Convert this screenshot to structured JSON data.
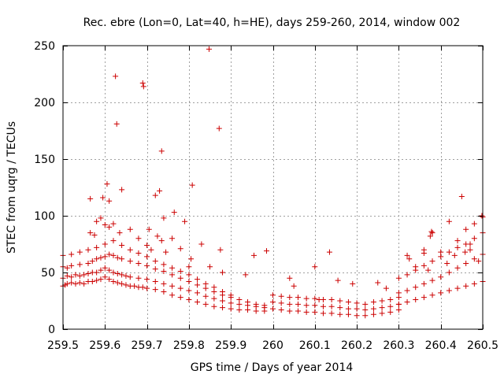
{
  "chart_data": {
    "type": "scatter",
    "title": "Rec. ebre (Lon=0, Lat=40, h=HE), days 259-260, 2014, window 002",
    "xlabel": "GPS time / Days of year 2014",
    "ylabel": "STEC from uqrg / TECUs",
    "xlim": [
      259.5,
      260.5
    ],
    "ylim": [
      0,
      250
    ],
    "xticks": [
      259.5,
      259.6,
      259.7,
      259.8,
      259.9,
      260,
      260.1,
      260.2,
      260.3,
      260.4,
      260.5
    ],
    "xtick_labels": [
      "259.5",
      "259.6",
      "259.7",
      "259.8",
      "259.9",
      "260",
      "260.1",
      "260.2",
      "260.3",
      "260.4",
      "260.5"
    ],
    "yticks": [
      0,
      50,
      100,
      150,
      200,
      250
    ],
    "ytick_labels": [
      "0",
      "50",
      "100",
      "150",
      "200",
      "250"
    ],
    "grid": true,
    "marker": "+",
    "color": "#cc0000",
    "series": [
      {
        "name": "STEC",
        "x": [
          259.5,
          259.505,
          259.51,
          259.52,
          259.53,
          259.54,
          259.55,
          259.56,
          259.57,
          259.58,
          259.59,
          259.6,
          259.61,
          259.62,
          259.63,
          259.64,
          259.65,
          259.66,
          259.67,
          259.68,
          259.69,
          259.7,
          259.72,
          259.74,
          259.76,
          259.78,
          259.8,
          259.82,
          259.84,
          259.86,
          259.88,
          259.9,
          259.92,
          259.94,
          259.96,
          259.98,
          259.5,
          259.51,
          259.52,
          259.53,
          259.54,
          259.55,
          259.56,
          259.57,
          259.58,
          259.59,
          259.6,
          259.61,
          259.62,
          259.63,
          259.64,
          259.65,
          259.66,
          259.68,
          259.7,
          259.72,
          259.74,
          259.76,
          259.78,
          259.8,
          259.82,
          259.84,
          259.86,
          259.88,
          259.9,
          259.92,
          259.94,
          259.96,
          259.98,
          259.5,
          259.51,
          259.52,
          259.54,
          259.56,
          259.57,
          259.58,
          259.59,
          259.6,
          259.61,
          259.62,
          259.63,
          259.64,
          259.66,
          259.68,
          259.7,
          259.72,
          259.74,
          259.76,
          259.78,
          259.8,
          259.82,
          259.84,
          259.86,
          259.88,
          259.9,
          259.92,
          259.94,
          259.96,
          259.98,
          259.5,
          259.52,
          259.54,
          259.56,
          259.58,
          259.6,
          259.62,
          259.64,
          259.66,
          259.68,
          259.7,
          259.72,
          259.74,
          259.76,
          259.78,
          259.8,
          259.82,
          259.84,
          259.86,
          259.88,
          259.9,
          259.565,
          259.58,
          259.59,
          259.6,
          259.61,
          259.62,
          259.635,
          259.66,
          259.68,
          259.7,
          259.71,
          259.725,
          259.735,
          259.745,
          259.76,
          259.78,
          259.8,
          259.805,
          259.83,
          259.85,
          259.875,
          259.88,
          259.935,
          259.955,
          259.985,
          259.625,
          259.628,
          259.69,
          259.692,
          259.735,
          259.848,
          259.872,
          259.595,
          259.605,
          259.64,
          259.565,
          259.575,
          259.61,
          259.72,
          259.765,
          259.79,
          259.808,
          259.74,
          259.73,
          259.705,
          260.0,
          260.02,
          260.04,
          260.06,
          260.08,
          260.1,
          260.12,
          260.14,
          260.16,
          260.18,
          260.2,
          260.22,
          260.24,
          260.26,
          260.28,
          260.3,
          260.0,
          260.02,
          260.04,
          260.06,
          260.08,
          260.1,
          260.12,
          260.14,
          260.16,
          260.18,
          260.2,
          260.22,
          260.24,
          260.26,
          260.28,
          260.3,
          260.0,
          260.02,
          260.04,
          260.06,
          260.08,
          260.1,
          260.12,
          260.14,
          260.16,
          260.18,
          260.2,
          260.22,
          260.24,
          260.26,
          260.28,
          260.3,
          260.04,
          260.05,
          260.1,
          260.11,
          260.135,
          260.155,
          260.19,
          260.25,
          260.27,
          260.3,
          260.32,
          260.34,
          260.36,
          260.38,
          260.4,
          260.42,
          260.44,
          260.46,
          260.48,
          260.5,
          260.3,
          260.32,
          260.34,
          260.36,
          260.38,
          260.4,
          260.42,
          260.44,
          260.46,
          260.48,
          260.5,
          260.3,
          260.32,
          260.34,
          260.36,
          260.38,
          260.4,
          260.42,
          260.44,
          260.46,
          260.48,
          260.5,
          260.32,
          260.34,
          260.36,
          260.37,
          260.38,
          260.4,
          260.42,
          260.44,
          260.45,
          260.46,
          260.47,
          260.48,
          260.49,
          260.5,
          260.375,
          260.378,
          260.433,
          260.458,
          260.498,
          260.47,
          260.415,
          260.325,
          260.36
        ],
        "y": [
          38,
          39,
          40,
          41,
          40,
          41,
          40,
          42,
          42,
          43,
          44,
          46,
          44,
          42,
          41,
          40,
          39,
          38,
          38,
          37,
          37,
          36,
          35,
          33,
          30,
          28,
          26,
          24,
          22,
          20,
          19,
          18,
          17,
          17,
          16,
          16,
          45,
          47,
          46,
          48,
          47,
          48,
          49,
          50,
          50,
          52,
          54,
          52,
          50,
          49,
          48,
          47,
          46,
          45,
          44,
          42,
          40,
          38,
          36,
          34,
          32,
          29,
          27,
          25,
          23,
          22,
          21,
          20,
          19,
          55,
          54,
          56,
          57,
          58,
          60,
          62,
          63,
          64,
          66,
          65,
          63,
          62,
          60,
          58,
          56,
          53,
          51,
          48,
          45,
          42,
          39,
          36,
          33,
          30,
          28,
          26,
          24,
          22,
          21,
          65,
          66,
          68,
          70,
          72,
          75,
          78,
          74,
          70,
          67,
          64,
          60,
          57,
          54,
          51,
          48,
          44,
          40,
          37,
          33,
          30,
          85,
          95,
          98,
          92,
          90,
          93,
          85,
          88,
          80,
          74,
          70,
          82,
          78,
          68,
          80,
          71,
          55,
          62,
          75,
          55,
          70,
          50,
          48,
          65,
          69,
          223,
          181,
          217,
          214,
          157,
          247,
          177,
          116,
          128,
          123,
          115,
          83,
          113,
          118,
          103,
          95,
          127,
          98,
          122,
          88,
          18,
          17,
          16,
          16,
          15,
          15,
          14,
          14,
          13,
          13,
          12,
          12,
          13,
          14,
          15,
          17,
          24,
          23,
          22,
          22,
          21,
          21,
          20,
          20,
          19,
          18,
          18,
          17,
          18,
          19,
          20,
          22,
          30,
          29,
          28,
          28,
          27,
          27,
          26,
          26,
          25,
          24,
          23,
          22,
          24,
          25,
          26,
          28,
          45,
          38,
          55,
          26,
          68,
          43,
          40,
          41,
          36,
          22,
          24,
          26,
          28,
          30,
          32,
          34,
          36,
          38,
          40,
          42,
          32,
          34,
          37,
          40,
          43,
          46,
          50,
          54,
          58,
          62,
          66,
          45,
          48,
          52,
          56,
          60,
          64,
          68,
          72,
          75,
          80,
          85,
          65,
          55,
          70,
          52,
          85,
          68,
          95,
          78,
          117,
          88,
          70,
          93,
          60,
          99,
          82,
          86,
          65,
          68,
          100,
          75,
          58,
          62,
          67
        ]
      }
    ]
  }
}
